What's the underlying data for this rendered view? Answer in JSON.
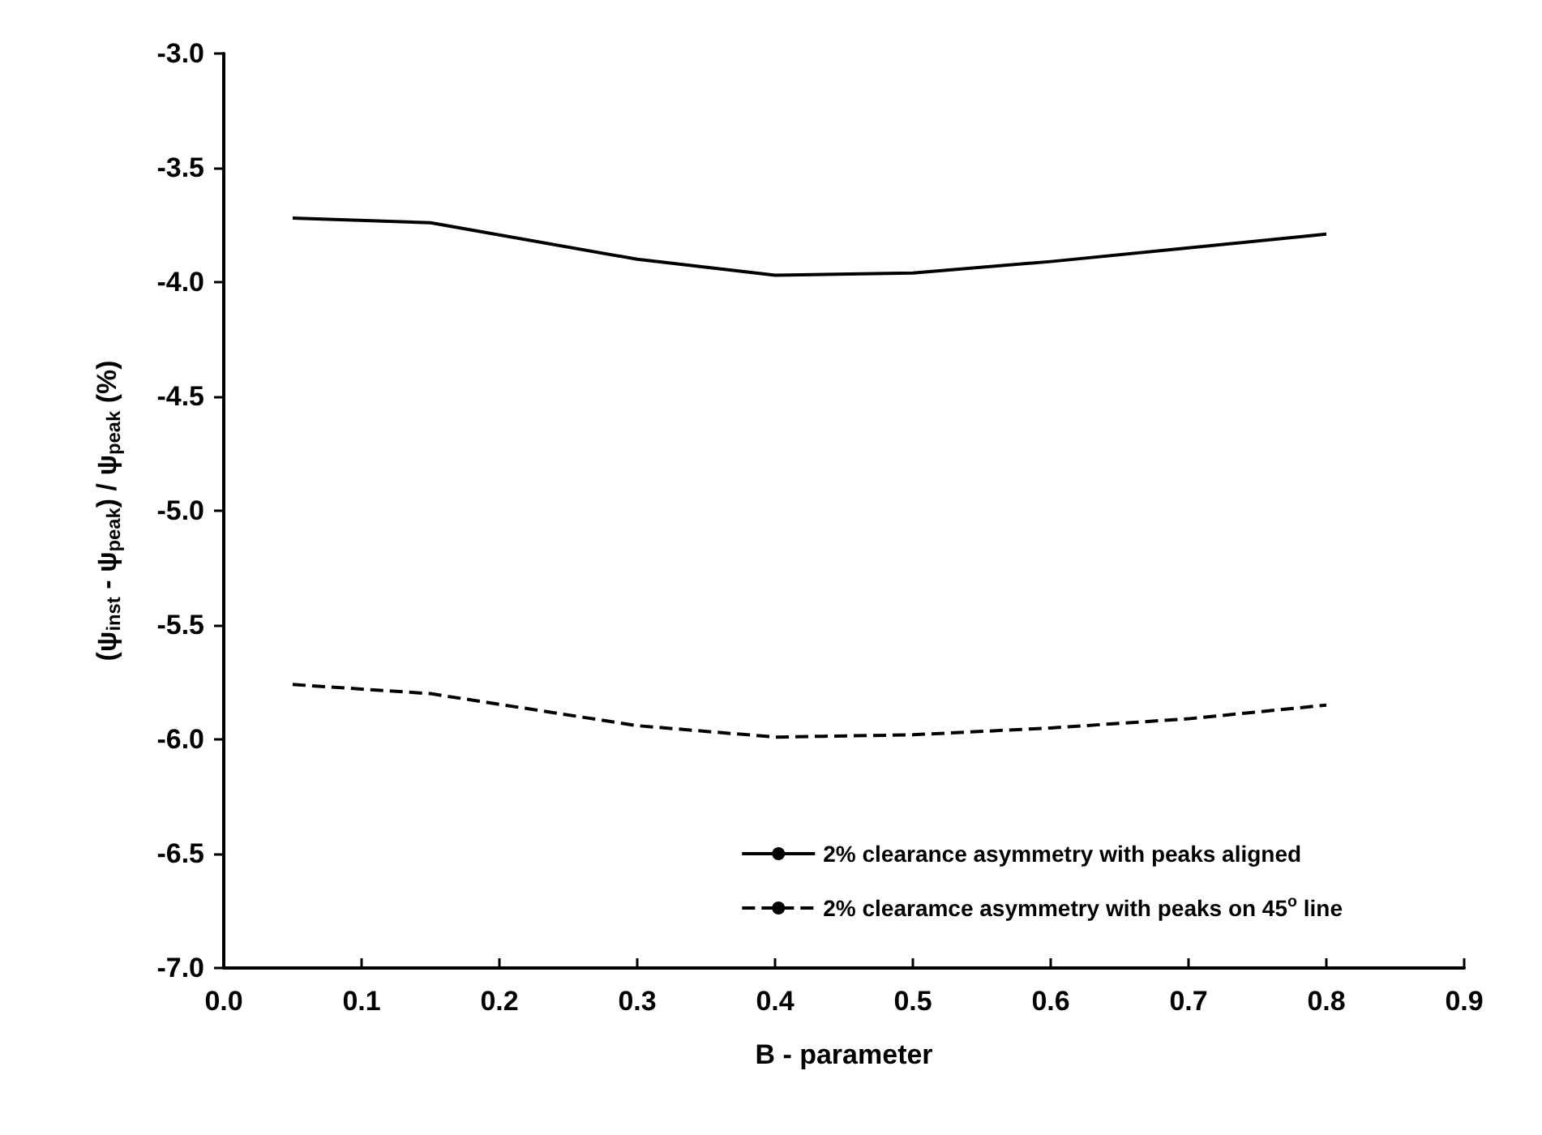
{
  "chart_data": {
    "type": "line",
    "xlabel": "B - parameter",
    "ylabel": "(ψ$_{inst}$ - ψ$_{peak}$) / ψ$_{peak}$ (%)",
    "xlim": [
      0,
      0.9
    ],
    "xticks": [
      {
        "value": 0,
        "label": "0.0"
      },
      0.1,
      0.2,
      0.3,
      0.4,
      0.5,
      0.6,
      0.7,
      0.8,
      0.9
    ],
    "ylim": [
      -7,
      -3
    ],
    "yticks": [
      {
        "value": -7,
        "label": "-7.0"
      },
      -6.5,
      {
        "value": -6,
        "label": "-6.0"
      },
      -5.5,
      {
        "value": -5,
        "label": "-5.0"
      },
      -4.5,
      {
        "value": -4,
        "label": "-4.0"
      },
      -3.5,
      {
        "value": -3,
        "label": "-3.0"
      }
    ],
    "grid": false,
    "legend": "bottom right",
    "marker": "none",
    "series": [
      {
        "name": "2% clearance asymmetry with peaks aligned",
        "color": "#000000",
        "line_style": "solid",
        "x": [
          0.05,
          0.15,
          0.3,
          0.4,
          0.5,
          0.6,
          0.7,
          0.8
        ],
        "values": [
          -3.72,
          -3.74,
          -3.9,
          -3.97,
          -3.96,
          -3.91,
          -3.85,
          -3.79
        ]
      },
      {
        "name": "2% clearamce asymmetry with peaks on 45$^{o}$ line",
        "color": "#000000",
        "line_style": "dashed",
        "x": [
          0.05,
          0.15,
          0.3,
          0.4,
          0.5,
          0.6,
          0.7,
          0.8
        ],
        "values": [
          -5.76,
          -5.8,
          -5.94,
          -5.99,
          -5.98,
          -5.95,
          -5.91,
          -5.85
        ]
      }
    ]
  }
}
